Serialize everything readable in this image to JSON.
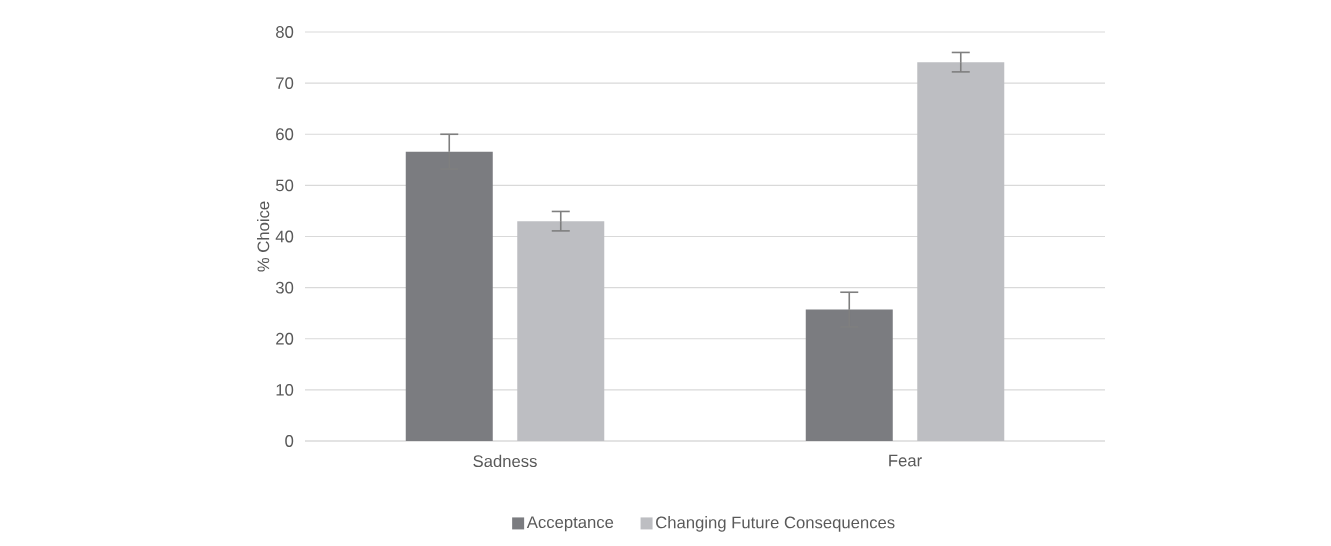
{
  "chart_data": {
    "type": "bar",
    "ylabel": "% Choice",
    "categories": [
      "Sadness",
      "Fear"
    ],
    "series": [
      {
        "name": "Acceptance",
        "color": "#7b7c80",
        "values": [
          56.6,
          25.7
        ],
        "errors": [
          3.4,
          3.4
        ]
      },
      {
        "name": "Changing Future Consequences",
        "color": "#bdbec2",
        "values": [
          43.0,
          74.1
        ],
        "errors": [
          1.9,
          1.9
        ]
      }
    ],
    "ylim": [
      0,
      80
    ],
    "yticks": [
      0,
      10,
      20,
      30,
      40,
      50,
      60,
      70,
      80
    ],
    "grid": "y",
    "legend": "bottom"
  }
}
